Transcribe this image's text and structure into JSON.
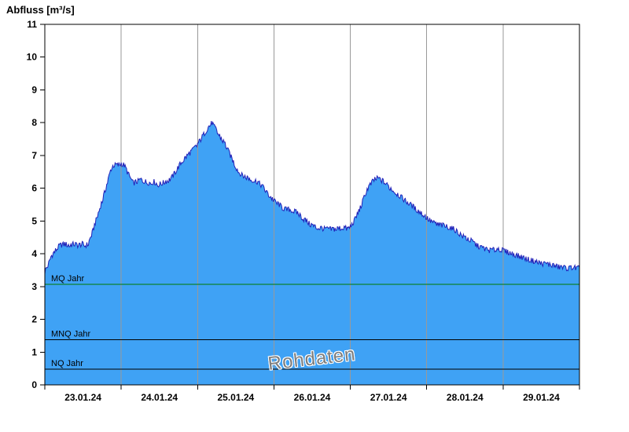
{
  "title": "Abfluss [m³/s]",
  "watermark": "Rohdaten",
  "chart_data": {
    "type": "area",
    "title": "Abfluss [m³/s]",
    "ylabel": "Abfluss [m³/s]",
    "xlabel": "",
    "ylim": [
      0,
      11
    ],
    "y_ticks": [
      0,
      1,
      2,
      3,
      4,
      5,
      6,
      7,
      8,
      9,
      10,
      11
    ],
    "x_tick_labels": [
      "23.01.24",
      "24.01.24",
      "25.01.24",
      "26.01.24",
      "27.01.24",
      "28.01.24",
      "29.01.24"
    ],
    "x_days": 7,
    "grid": "vertical-day-gridlines",
    "legend": "none",
    "noise_amplitude": 0.08,
    "colors": {
      "fill": "#3fa2f5",
      "line": "#2121b8",
      "grid": "#999999",
      "mq_line": "#007a00",
      "ref_line": "#000000"
    },
    "reference_lines": [
      {
        "label": "MQ Jahr",
        "value": 3.07,
        "color": "#007a00"
      },
      {
        "label": "MNQ Jahr",
        "value": 1.38,
        "color": "#000000"
      },
      {
        "label": "NQ Jahr",
        "value": 0.48,
        "color": "#000000"
      }
    ],
    "series": [
      {
        "name": "Abfluss Rohdaten",
        "unit": "m³/s",
        "x_origin": "23.01.24 00:00",
        "points": [
          [
            0.0,
            3.45
          ],
          [
            0.03,
            3.6
          ],
          [
            0.06,
            3.75
          ],
          [
            0.08,
            3.9
          ],
          [
            0.11,
            4.0
          ],
          [
            0.14,
            4.1
          ],
          [
            0.17,
            4.2
          ],
          [
            0.2,
            4.25
          ],
          [
            0.26,
            4.3
          ],
          [
            0.32,
            4.25
          ],
          [
            0.38,
            4.3
          ],
          [
            0.44,
            4.25
          ],
          [
            0.49,
            4.3
          ],
          [
            0.53,
            4.25
          ],
          [
            0.57,
            4.3
          ],
          [
            0.6,
            4.5
          ],
          [
            0.63,
            4.7
          ],
          [
            0.66,
            4.95
          ],
          [
            0.69,
            5.15
          ],
          [
            0.72,
            5.4
          ],
          [
            0.75,
            5.6
          ],
          [
            0.78,
            5.85
          ],
          [
            0.81,
            6.1
          ],
          [
            0.84,
            6.35
          ],
          [
            0.87,
            6.6
          ],
          [
            0.9,
            6.7
          ],
          [
            0.95,
            6.7
          ],
          [
            1.0,
            6.75
          ],
          [
            1.04,
            6.7
          ],
          [
            1.07,
            6.55
          ],
          [
            1.1,
            6.4
          ],
          [
            1.13,
            6.25
          ],
          [
            1.16,
            6.15
          ],
          [
            1.2,
            6.2
          ],
          [
            1.26,
            6.25
          ],
          [
            1.32,
            6.2
          ],
          [
            1.38,
            6.15
          ],
          [
            1.43,
            6.2
          ],
          [
            1.48,
            6.1
          ],
          [
            1.53,
            6.15
          ],
          [
            1.58,
            6.2
          ],
          [
            1.63,
            6.25
          ],
          [
            1.67,
            6.35
          ],
          [
            1.71,
            6.5
          ],
          [
            1.75,
            6.65
          ],
          [
            1.79,
            6.8
          ],
          [
            1.83,
            6.9
          ],
          [
            1.87,
            7.0
          ],
          [
            1.91,
            7.1
          ],
          [
            1.95,
            7.2
          ],
          [
            1.99,
            7.3
          ],
          [
            2.03,
            7.45
          ],
          [
            2.07,
            7.6
          ],
          [
            2.11,
            7.75
          ],
          [
            2.14,
            7.85
          ],
          [
            2.17,
            7.95
          ],
          [
            2.19,
            8.0
          ],
          [
            2.21,
            7.9
          ],
          [
            2.24,
            7.8
          ],
          [
            2.27,
            7.65
          ],
          [
            2.3,
            7.55
          ],
          [
            2.33,
            7.45
          ],
          [
            2.36,
            7.35
          ],
          [
            2.4,
            7.15
          ],
          [
            2.44,
            6.95
          ],
          [
            2.47,
            6.8
          ],
          [
            2.5,
            6.65
          ],
          [
            2.54,
            6.5
          ],
          [
            2.58,
            6.4
          ],
          [
            2.62,
            6.35
          ],
          [
            2.67,
            6.3
          ],
          [
            2.72,
            6.25
          ],
          [
            2.78,
            6.2
          ],
          [
            2.83,
            6.1
          ],
          [
            2.87,
            6.0
          ],
          [
            2.91,
            5.85
          ],
          [
            2.95,
            5.75
          ],
          [
            2.99,
            5.65
          ],
          [
            3.03,
            5.55
          ],
          [
            3.07,
            5.5
          ],
          [
            3.11,
            5.4
          ],
          [
            3.16,
            5.35
          ],
          [
            3.21,
            5.35
          ],
          [
            3.26,
            5.3
          ],
          [
            3.31,
            5.25
          ],
          [
            3.35,
            5.15
          ],
          [
            3.39,
            5.05
          ],
          [
            3.43,
            5.0
          ],
          [
            3.47,
            4.9
          ],
          [
            3.51,
            4.85
          ],
          [
            3.56,
            4.8
          ],
          [
            3.62,
            4.78
          ],
          [
            3.68,
            4.75
          ],
          [
            3.74,
            4.75
          ],
          [
            3.8,
            4.75
          ],
          [
            3.86,
            4.78
          ],
          [
            3.92,
            4.8
          ],
          [
            3.97,
            4.75
          ],
          [
            4.01,
            4.85
          ],
          [
            4.05,
            5.0
          ],
          [
            4.08,
            5.15
          ],
          [
            4.11,
            5.3
          ],
          [
            4.14,
            5.45
          ],
          [
            4.17,
            5.65
          ],
          [
            4.2,
            5.85
          ],
          [
            4.23,
            6.0
          ],
          [
            4.26,
            6.1
          ],
          [
            4.29,
            6.2
          ],
          [
            4.32,
            6.28
          ],
          [
            4.36,
            6.3
          ],
          [
            4.4,
            6.25
          ],
          [
            4.44,
            6.2
          ],
          [
            4.48,
            6.1
          ],
          [
            4.52,
            6.0
          ],
          [
            4.56,
            5.95
          ],
          [
            4.6,
            5.85
          ],
          [
            4.64,
            5.78
          ],
          [
            4.68,
            5.7
          ],
          [
            4.72,
            5.62
          ],
          [
            4.76,
            5.55
          ],
          [
            4.8,
            5.48
          ],
          [
            4.84,
            5.4
          ],
          [
            4.88,
            5.32
          ],
          [
            4.92,
            5.25
          ],
          [
            4.96,
            5.18
          ],
          [
            5.0,
            5.1
          ],
          [
            5.04,
            5.02
          ],
          [
            5.08,
            4.95
          ],
          [
            5.13,
            4.9
          ],
          [
            5.18,
            4.88
          ],
          [
            5.24,
            4.85
          ],
          [
            5.3,
            4.8
          ],
          [
            5.36,
            4.75
          ],
          [
            5.41,
            4.65
          ],
          [
            5.46,
            4.55
          ],
          [
            5.5,
            4.5
          ],
          [
            5.54,
            4.45
          ],
          [
            5.58,
            4.4
          ],
          [
            5.62,
            4.32
          ],
          [
            5.66,
            4.25
          ],
          [
            5.7,
            4.2
          ],
          [
            5.76,
            4.15
          ],
          [
            5.82,
            4.1
          ],
          [
            5.88,
            4.12
          ],
          [
            5.94,
            4.15
          ],
          [
            6.0,
            4.1
          ],
          [
            6.06,
            4.05
          ],
          [
            6.12,
            4.0
          ],
          [
            6.18,
            3.95
          ],
          [
            6.24,
            3.9
          ],
          [
            6.3,
            3.85
          ],
          [
            6.37,
            3.8
          ],
          [
            6.44,
            3.75
          ],
          [
            6.51,
            3.7
          ],
          [
            6.58,
            3.68
          ],
          [
            6.65,
            3.65
          ],
          [
            6.72,
            3.6
          ],
          [
            6.79,
            3.58
          ],
          [
            6.86,
            3.55
          ],
          [
            6.92,
            3.6
          ],
          [
            6.96,
            3.55
          ],
          [
            7.0,
            3.58
          ]
        ]
      }
    ]
  }
}
